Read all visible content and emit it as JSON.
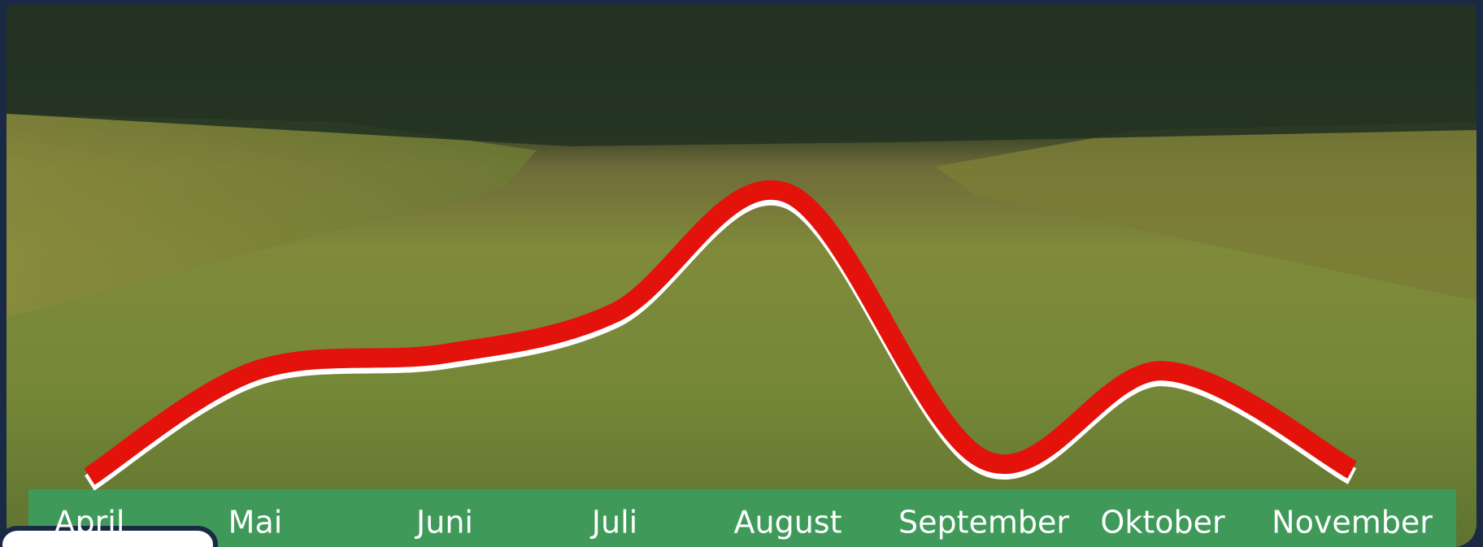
{
  "chart_data": {
    "type": "line",
    "categories": [
      "April",
      "Mai",
      "Juni",
      "Juli",
      "August",
      "September",
      "Oktober",
      "November"
    ],
    "series": [
      {
        "color": "#e3120b",
        "values": [
          8,
          39,
          44,
          56,
          91,
          13,
          39,
          10
        ]
      }
    ],
    "ylim": [
      0,
      100
    ]
  }
}
